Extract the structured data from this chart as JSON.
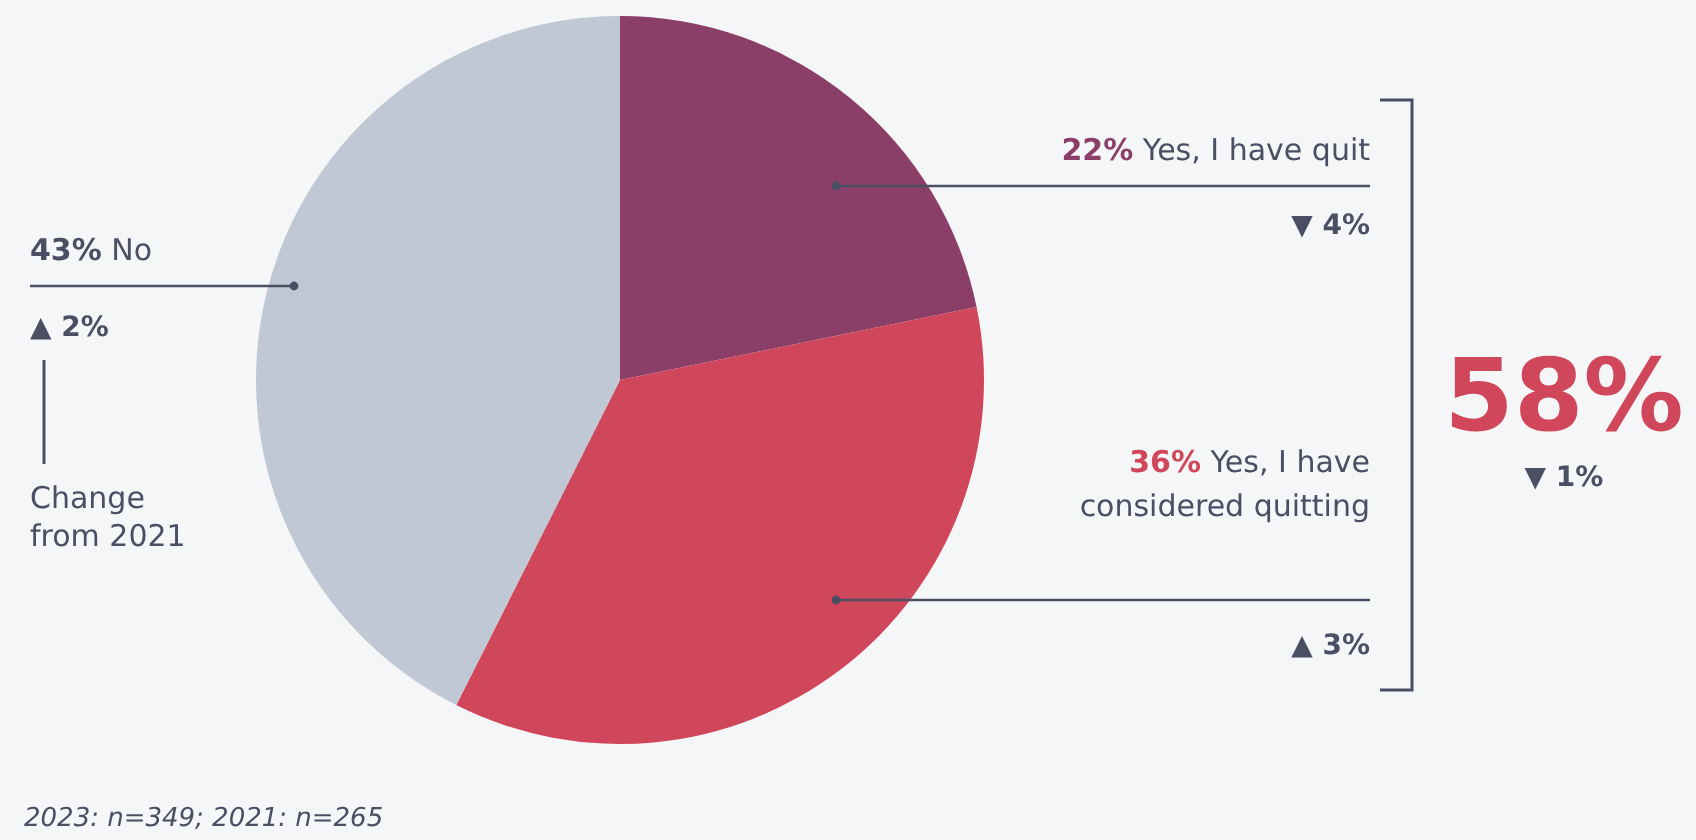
{
  "chart_data": {
    "type": "pie",
    "categories": [
      "Yes, I have quit",
      "Yes, I have considered quitting",
      "No"
    ],
    "values": [
      22,
      36,
      43
    ],
    "value_labels": [
      "22%",
      "36%",
      "43%"
    ],
    "colors": [
      "#8b3f68",
      "#d0465b",
      "#bfc8d4"
    ],
    "annotations": [
      "▼ 4%",
      "▲ 3%",
      "▲ 2%",
      "58%",
      "▼ 1%",
      "Change from 2021",
      "2023: n=349; 2021: n=265"
    ]
  }
}
